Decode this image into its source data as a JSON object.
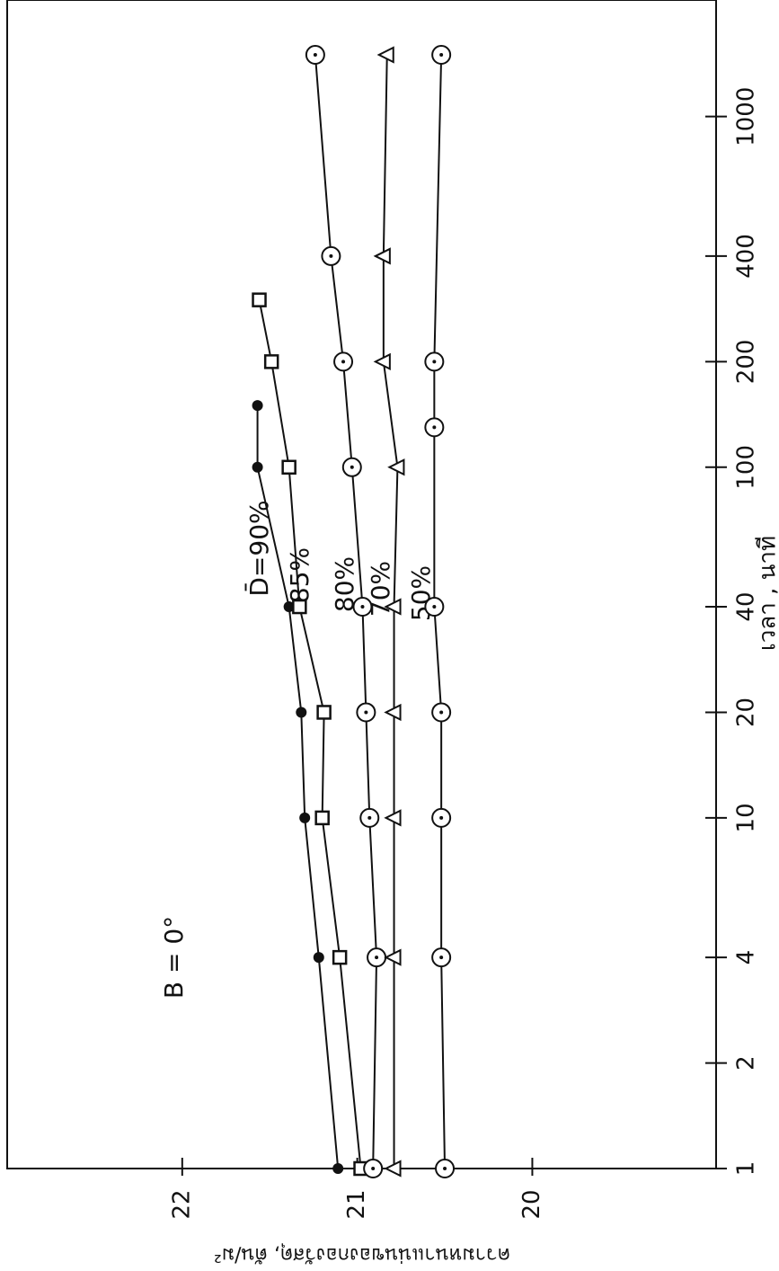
{
  "chart_data": {
    "type": "line",
    "x_label": "เวลา , นาที",
    "y_label": "ความหนาแน่นของกองวัสดุ, ตัน/ม²",
    "x_log": true,
    "xlim": [
      1,
      2150
    ],
    "xticks": [
      1,
      2,
      4,
      10,
      20,
      40,
      100,
      200,
      400,
      1000
    ],
    "ylim": [
      18.95,
      23
    ],
    "yticks": [
      20,
      21,
      22
    ],
    "annotations": [
      "D̄=90%",
      "85%",
      "80%",
      "70%",
      "50%",
      "B = 0°"
    ],
    "series": [
      {
        "name": "D̄=90%",
        "marker": "filled-circle",
        "color": "#111111",
        "x": [
          1,
          4,
          10,
          20,
          40,
          100,
          150
        ],
        "values": [
          21.11,
          21.22,
          21.3,
          21.32,
          21.39,
          21.57,
          21.57
        ]
      },
      {
        "name": "85%",
        "marker": "square",
        "color": "#111111",
        "x": [
          1,
          4,
          10,
          20,
          40,
          100,
          200,
          300
        ],
        "values": [
          20.98,
          21.1,
          21.2,
          21.19,
          21.33,
          21.39,
          21.49,
          21.56
        ]
      },
      {
        "name": "80%",
        "marker": "open-circle",
        "color": "#111111",
        "x": [
          1,
          4,
          10,
          20,
          40,
          100,
          200,
          400,
          1500
        ],
        "values": [
          20.91,
          20.89,
          20.93,
          20.95,
          20.97,
          21.03,
          21.08,
          21.15,
          21.24
        ]
      },
      {
        "name": "70%",
        "marker": "triangle",
        "color": "#111111",
        "x": [
          1,
          4,
          10,
          20,
          40,
          100,
          200,
          400,
          1500
        ],
        "values": [
          20.79,
          20.79,
          20.79,
          20.79,
          20.79,
          20.77,
          20.85,
          20.85,
          20.83
        ]
      },
      {
        "name": "50%",
        "marker": "open-circle",
        "color": "#111111",
        "x": [
          1,
          4,
          10,
          20,
          40,
          130,
          200,
          1500
        ],
        "values": [
          20.5,
          20.52,
          20.52,
          20.52,
          20.56,
          20.56,
          20.56,
          20.52
        ]
      }
    ]
  }
}
